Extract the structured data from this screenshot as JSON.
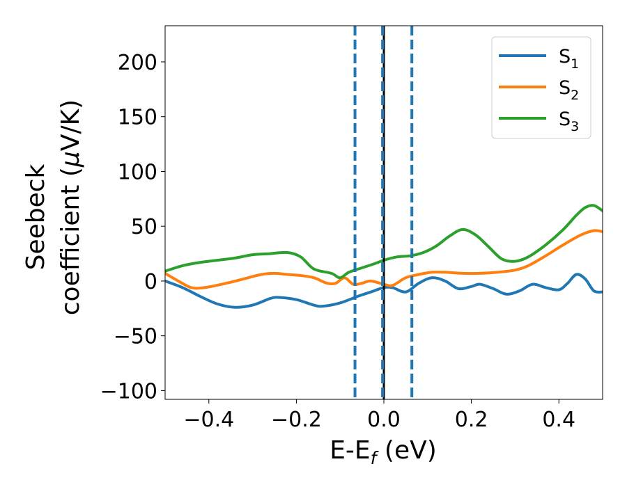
{
  "chart_data": {
    "type": "line",
    "xlabel": {
      "main": "E-E",
      "sub": "f",
      "unit": " (eV)"
    },
    "ylabel": {
      "line1": "Seebeck",
      "line2_pre": "coefficient  (",
      "line2_mu": "μ",
      "line2_post": "V/K)"
    },
    "xlim": [
      -0.5,
      0.5
    ],
    "ylim": [
      -108,
      233
    ],
    "xticks": [
      -0.4,
      -0.2,
      0.0,
      0.2,
      0.4
    ],
    "xtick_labels": [
      "−0.4",
      "−0.2",
      "0.0",
      "0.2",
      "0.4"
    ],
    "yticks": [
      -100,
      -50,
      0,
      50,
      100,
      150,
      200
    ],
    "ytick_labels": [
      "−100",
      "−50",
      "0",
      "50",
      "100",
      "150",
      "200"
    ],
    "grid": false,
    "legend_position": "top-right",
    "series": [
      {
        "name": "S",
        "sub": "1",
        "color": "#1f77b4",
        "points": [
          [
            -0.5,
            0
          ],
          [
            -0.46,
            -6
          ],
          [
            -0.42,
            -14
          ],
          [
            -0.38,
            -21
          ],
          [
            -0.34,
            -24
          ],
          [
            -0.3,
            -22
          ],
          [
            -0.26,
            -16
          ],
          [
            -0.24,
            -15
          ],
          [
            -0.2,
            -17
          ],
          [
            -0.16,
            -22
          ],
          [
            -0.14,
            -23
          ],
          [
            -0.1,
            -20
          ],
          [
            -0.06,
            -14
          ],
          [
            -0.03,
            -10
          ],
          [
            0.0,
            -6
          ],
          [
            0.02,
            -6
          ],
          [
            0.05,
            -10
          ],
          [
            0.08,
            -2
          ],
          [
            0.11,
            3
          ],
          [
            0.14,
            0
          ],
          [
            0.17,
            -7
          ],
          [
            0.2,
            -5
          ],
          [
            0.22,
            -3
          ],
          [
            0.25,
            -7
          ],
          [
            0.28,
            -12
          ],
          [
            0.31,
            -9
          ],
          [
            0.34,
            -3
          ],
          [
            0.37,
            -6
          ],
          [
            0.4,
            -8
          ],
          [
            0.42,
            -2
          ],
          [
            0.44,
            6
          ],
          [
            0.46,
            2
          ],
          [
            0.48,
            -9
          ],
          [
            0.5,
            -10
          ]
        ]
      },
      {
        "name": "S",
        "sub": "2",
        "color": "#ff7f0e",
        "points": [
          [
            -0.5,
            7
          ],
          [
            -0.47,
            0
          ],
          [
            -0.44,
            -6
          ],
          [
            -0.41,
            -6
          ],
          [
            -0.36,
            -2
          ],
          [
            -0.32,
            2
          ],
          [
            -0.28,
            6
          ],
          [
            -0.25,
            7
          ],
          [
            -0.22,
            6
          ],
          [
            -0.19,
            5
          ],
          [
            -0.16,
            3
          ],
          [
            -0.13,
            -2
          ],
          [
            -0.11,
            -2
          ],
          [
            -0.09,
            3
          ],
          [
            -0.07,
            -3
          ],
          [
            -0.05,
            -2
          ],
          [
            -0.03,
            0
          ],
          [
            0.0,
            -3
          ],
          [
            0.02,
            -4
          ],
          [
            0.05,
            3
          ],
          [
            0.08,
            6
          ],
          [
            0.11,
            8
          ],
          [
            0.14,
            8
          ],
          [
            0.18,
            7
          ],
          [
            0.22,
            7
          ],
          [
            0.26,
            8
          ],
          [
            0.3,
            10
          ],
          [
            0.33,
            14
          ],
          [
            0.37,
            23
          ],
          [
            0.41,
            33
          ],
          [
            0.45,
            42
          ],
          [
            0.48,
            46
          ],
          [
            0.5,
            45
          ]
        ]
      },
      {
        "name": "S",
        "sub": "3",
        "color": "#2ca02c",
        "points": [
          [
            -0.5,
            9
          ],
          [
            -0.46,
            14
          ],
          [
            -0.42,
            17
          ],
          [
            -0.38,
            19
          ],
          [
            -0.34,
            21
          ],
          [
            -0.3,
            24
          ],
          [
            -0.26,
            25
          ],
          [
            -0.22,
            26
          ],
          [
            -0.19,
            22
          ],
          [
            -0.16,
            11
          ],
          [
            -0.12,
            7
          ],
          [
            -0.1,
            3
          ],
          [
            -0.08,
            8
          ],
          [
            -0.05,
            12
          ],
          [
            -0.02,
            16
          ],
          [
            0.0,
            19
          ],
          [
            0.03,
            22
          ],
          [
            0.06,
            23
          ],
          [
            0.09,
            26
          ],
          [
            0.12,
            32
          ],
          [
            0.15,
            41
          ],
          [
            0.18,
            47
          ],
          [
            0.21,
            42
          ],
          [
            0.24,
            31
          ],
          [
            0.27,
            20
          ],
          [
            0.3,
            18
          ],
          [
            0.33,
            22
          ],
          [
            0.37,
            33
          ],
          [
            0.41,
            47
          ],
          [
            0.44,
            60
          ],
          [
            0.46,
            67
          ],
          [
            0.48,
            69
          ],
          [
            0.5,
            64
          ]
        ]
      }
    ],
    "vlines": [
      {
        "x": -0.066,
        "style": "dashed",
        "color": "#1f77b4"
      },
      {
        "x": 0.0,
        "style": "solid",
        "color": "#000000"
      },
      {
        "x": -0.003,
        "style": "dashed",
        "color": "#1f77b4"
      },
      {
        "x": 0.064,
        "style": "dashed",
        "color": "#1f77b4"
      }
    ]
  }
}
